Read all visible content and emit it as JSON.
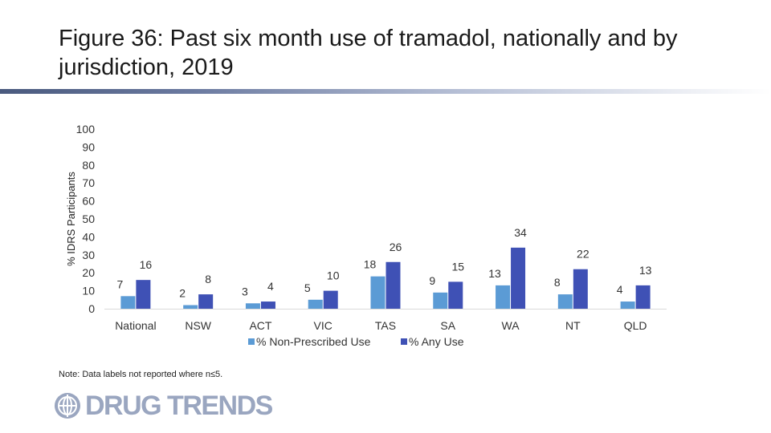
{
  "slide": {
    "title": "Figure 36: Past six month use of tramadol, nationally and by jurisdiction, 2019",
    "note": "Note: Data labels not reported where n≤5.",
    "logo_text": "DRUG TRENDS"
  },
  "chart_data": {
    "type": "bar",
    "categories": [
      "National",
      "NSW",
      "ACT",
      "VIC",
      "TAS",
      "SA",
      "WA",
      "NT",
      "QLD"
    ],
    "series": [
      {
        "name": "% Non-Prescribed Use",
        "values": [
          7,
          2,
          3,
          5,
          18,
          9,
          13,
          8,
          4
        ],
        "color": "#5b9bd5"
      },
      {
        "name": "% Any Use",
        "values": [
          16,
          8,
          4,
          10,
          26,
          15,
          34,
          22,
          13
        ],
        "color": "#3f51b5"
      }
    ],
    "ylabel": "% IDRS Participants",
    "ylim": [
      0,
      100
    ],
    "yticks": [
      "0",
      "10",
      "20",
      "30",
      "40",
      "50",
      "60",
      "70",
      "80",
      "90",
      "100"
    ],
    "grid": false,
    "legend": "bottom"
  },
  "colors": {
    "accent": "#4a5a7e",
    "logo": "#9aa6c0"
  }
}
